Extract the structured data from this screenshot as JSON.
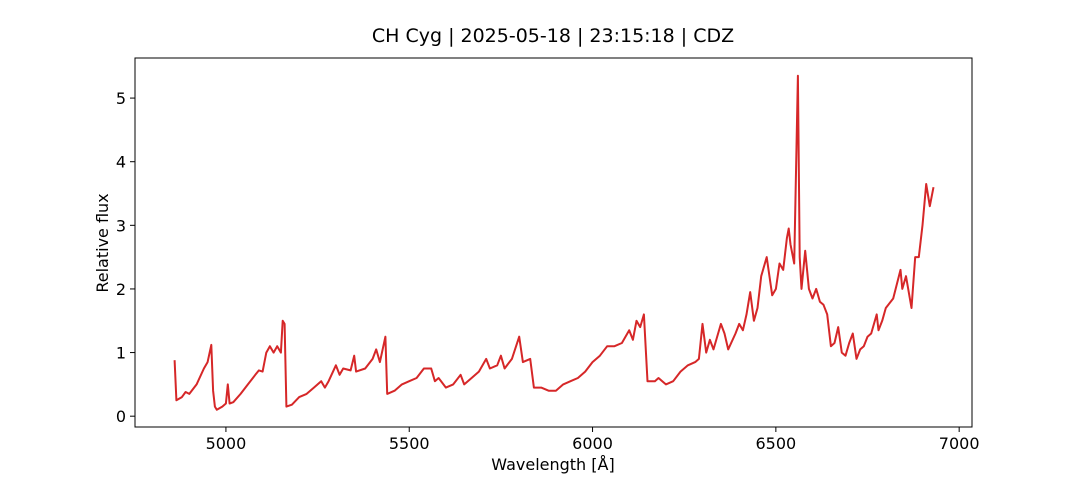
{
  "chart_data": {
    "type": "line",
    "title": "CH Cyg | 2025-05-18 | 23:15:18 | CDZ",
    "x_label": "Wavelength [Å]",
    "y_label": "Relative flux",
    "xlim": [
      4752,
      7035
    ],
    "ylim": [
      -0.17,
      5.63
    ],
    "xticks": [
      5000,
      5500,
      6000,
      6500,
      7000
    ],
    "yticks": [
      0,
      1,
      2,
      3,
      4,
      5
    ],
    "x": [
      4860,
      4865,
      4880,
      4890,
      4900,
      4920,
      4940,
      4950,
      4960,
      4965,
      4970,
      4975,
      4990,
      5000,
      5005,
      5010,
      5020,
      5040,
      5060,
      5080,
      5090,
      5100,
      5110,
      5120,
      5130,
      5140,
      5150,
      5155,
      5160,
      5165,
      5180,
      5200,
      5220,
      5240,
      5260,
      5270,
      5280,
      5300,
      5310,
      5320,
      5340,
      5350,
      5355,
      5380,
      5400,
      5410,
      5420,
      5435,
      5440,
      5460,
      5480,
      5500,
      5520,
      5540,
      5560,
      5570,
      5580,
      5600,
      5620,
      5640,
      5650,
      5670,
      5690,
      5710,
      5720,
      5740,
      5750,
      5760,
      5780,
      5800,
      5810,
      5830,
      5840,
      5860,
      5880,
      5900,
      5920,
      5940,
      5960,
      5980,
      6000,
      6020,
      6040,
      6060,
      6080,
      6100,
      6110,
      6120,
      6130,
      6140,
      6150,
      6170,
      6180,
      6200,
      6220,
      6240,
      6260,
      6280,
      6290,
      6300,
      6310,
      6320,
      6330,
      6350,
      6360,
      6370,
      6390,
      6400,
      6410,
      6420,
      6430,
      6440,
      6450,
      6460,
      6475,
      6490,
      6500,
      6510,
      6520,
      6530,
      6535,
      6540,
      6550,
      6560,
      6565,
      6570,
      6580,
      6590,
      6600,
      6610,
      6620,
      6630,
      6640,
      6650,
      6660,
      6670,
      6680,
      6690,
      6700,
      6710,
      6720,
      6730,
      6740,
      6750,
      6760,
      6775,
      6780,
      6790,
      6800,
      6820,
      6840,
      6845,
      6855,
      6870,
      6880,
      6890,
      6900,
      6910,
      6920,
      6930
    ],
    "series": [
      {
        "name": "CH Cyg",
        "color": "#d62728",
        "values": [
          0.88,
          0.25,
          0.3,
          0.38,
          0.35,
          0.5,
          0.75,
          0.85,
          1.12,
          0.4,
          0.15,
          0.1,
          0.15,
          0.2,
          0.5,
          0.2,
          0.22,
          0.35,
          0.5,
          0.65,
          0.72,
          0.7,
          1.0,
          1.1,
          1.0,
          1.1,
          1.0,
          1.5,
          1.45,
          0.15,
          0.18,
          0.3,
          0.35,
          0.45,
          0.55,
          0.45,
          0.55,
          0.8,
          0.65,
          0.75,
          0.72,
          0.95,
          0.7,
          0.75,
          0.9,
          1.05,
          0.85,
          1.25,
          0.35,
          0.4,
          0.5,
          0.55,
          0.6,
          0.75,
          0.75,
          0.55,
          0.6,
          0.45,
          0.5,
          0.65,
          0.5,
          0.6,
          0.7,
          0.9,
          0.75,
          0.8,
          0.95,
          0.75,
          0.9,
          1.25,
          0.85,
          0.9,
          0.45,
          0.45,
          0.4,
          0.4,
          0.5,
          0.55,
          0.6,
          0.7,
          0.85,
          0.95,
          1.1,
          1.1,
          1.15,
          1.35,
          1.2,
          1.5,
          1.4,
          1.6,
          0.55,
          0.55,
          0.6,
          0.5,
          0.55,
          0.7,
          0.8,
          0.85,
          0.9,
          1.45,
          1.0,
          1.2,
          1.05,
          1.45,
          1.3,
          1.05,
          1.3,
          1.45,
          1.35,
          1.6,
          1.95,
          1.5,
          1.7,
          2.2,
          2.5,
          1.9,
          2.0,
          2.4,
          2.3,
          2.8,
          2.95,
          2.7,
          2.4,
          5.35,
          2.5,
          2.0,
          2.6,
          2.0,
          1.85,
          2.0,
          1.8,
          1.75,
          1.6,
          1.1,
          1.15,
          1.4,
          1.0,
          0.95,
          1.15,
          1.3,
          0.9,
          1.05,
          1.1,
          1.25,
          1.3,
          1.6,
          1.35,
          1.5,
          1.7,
          1.85,
          2.3,
          2.0,
          2.2,
          1.7,
          2.5,
          2.5,
          3.0,
          3.65,
          3.3,
          3.6
        ]
      }
    ]
  }
}
